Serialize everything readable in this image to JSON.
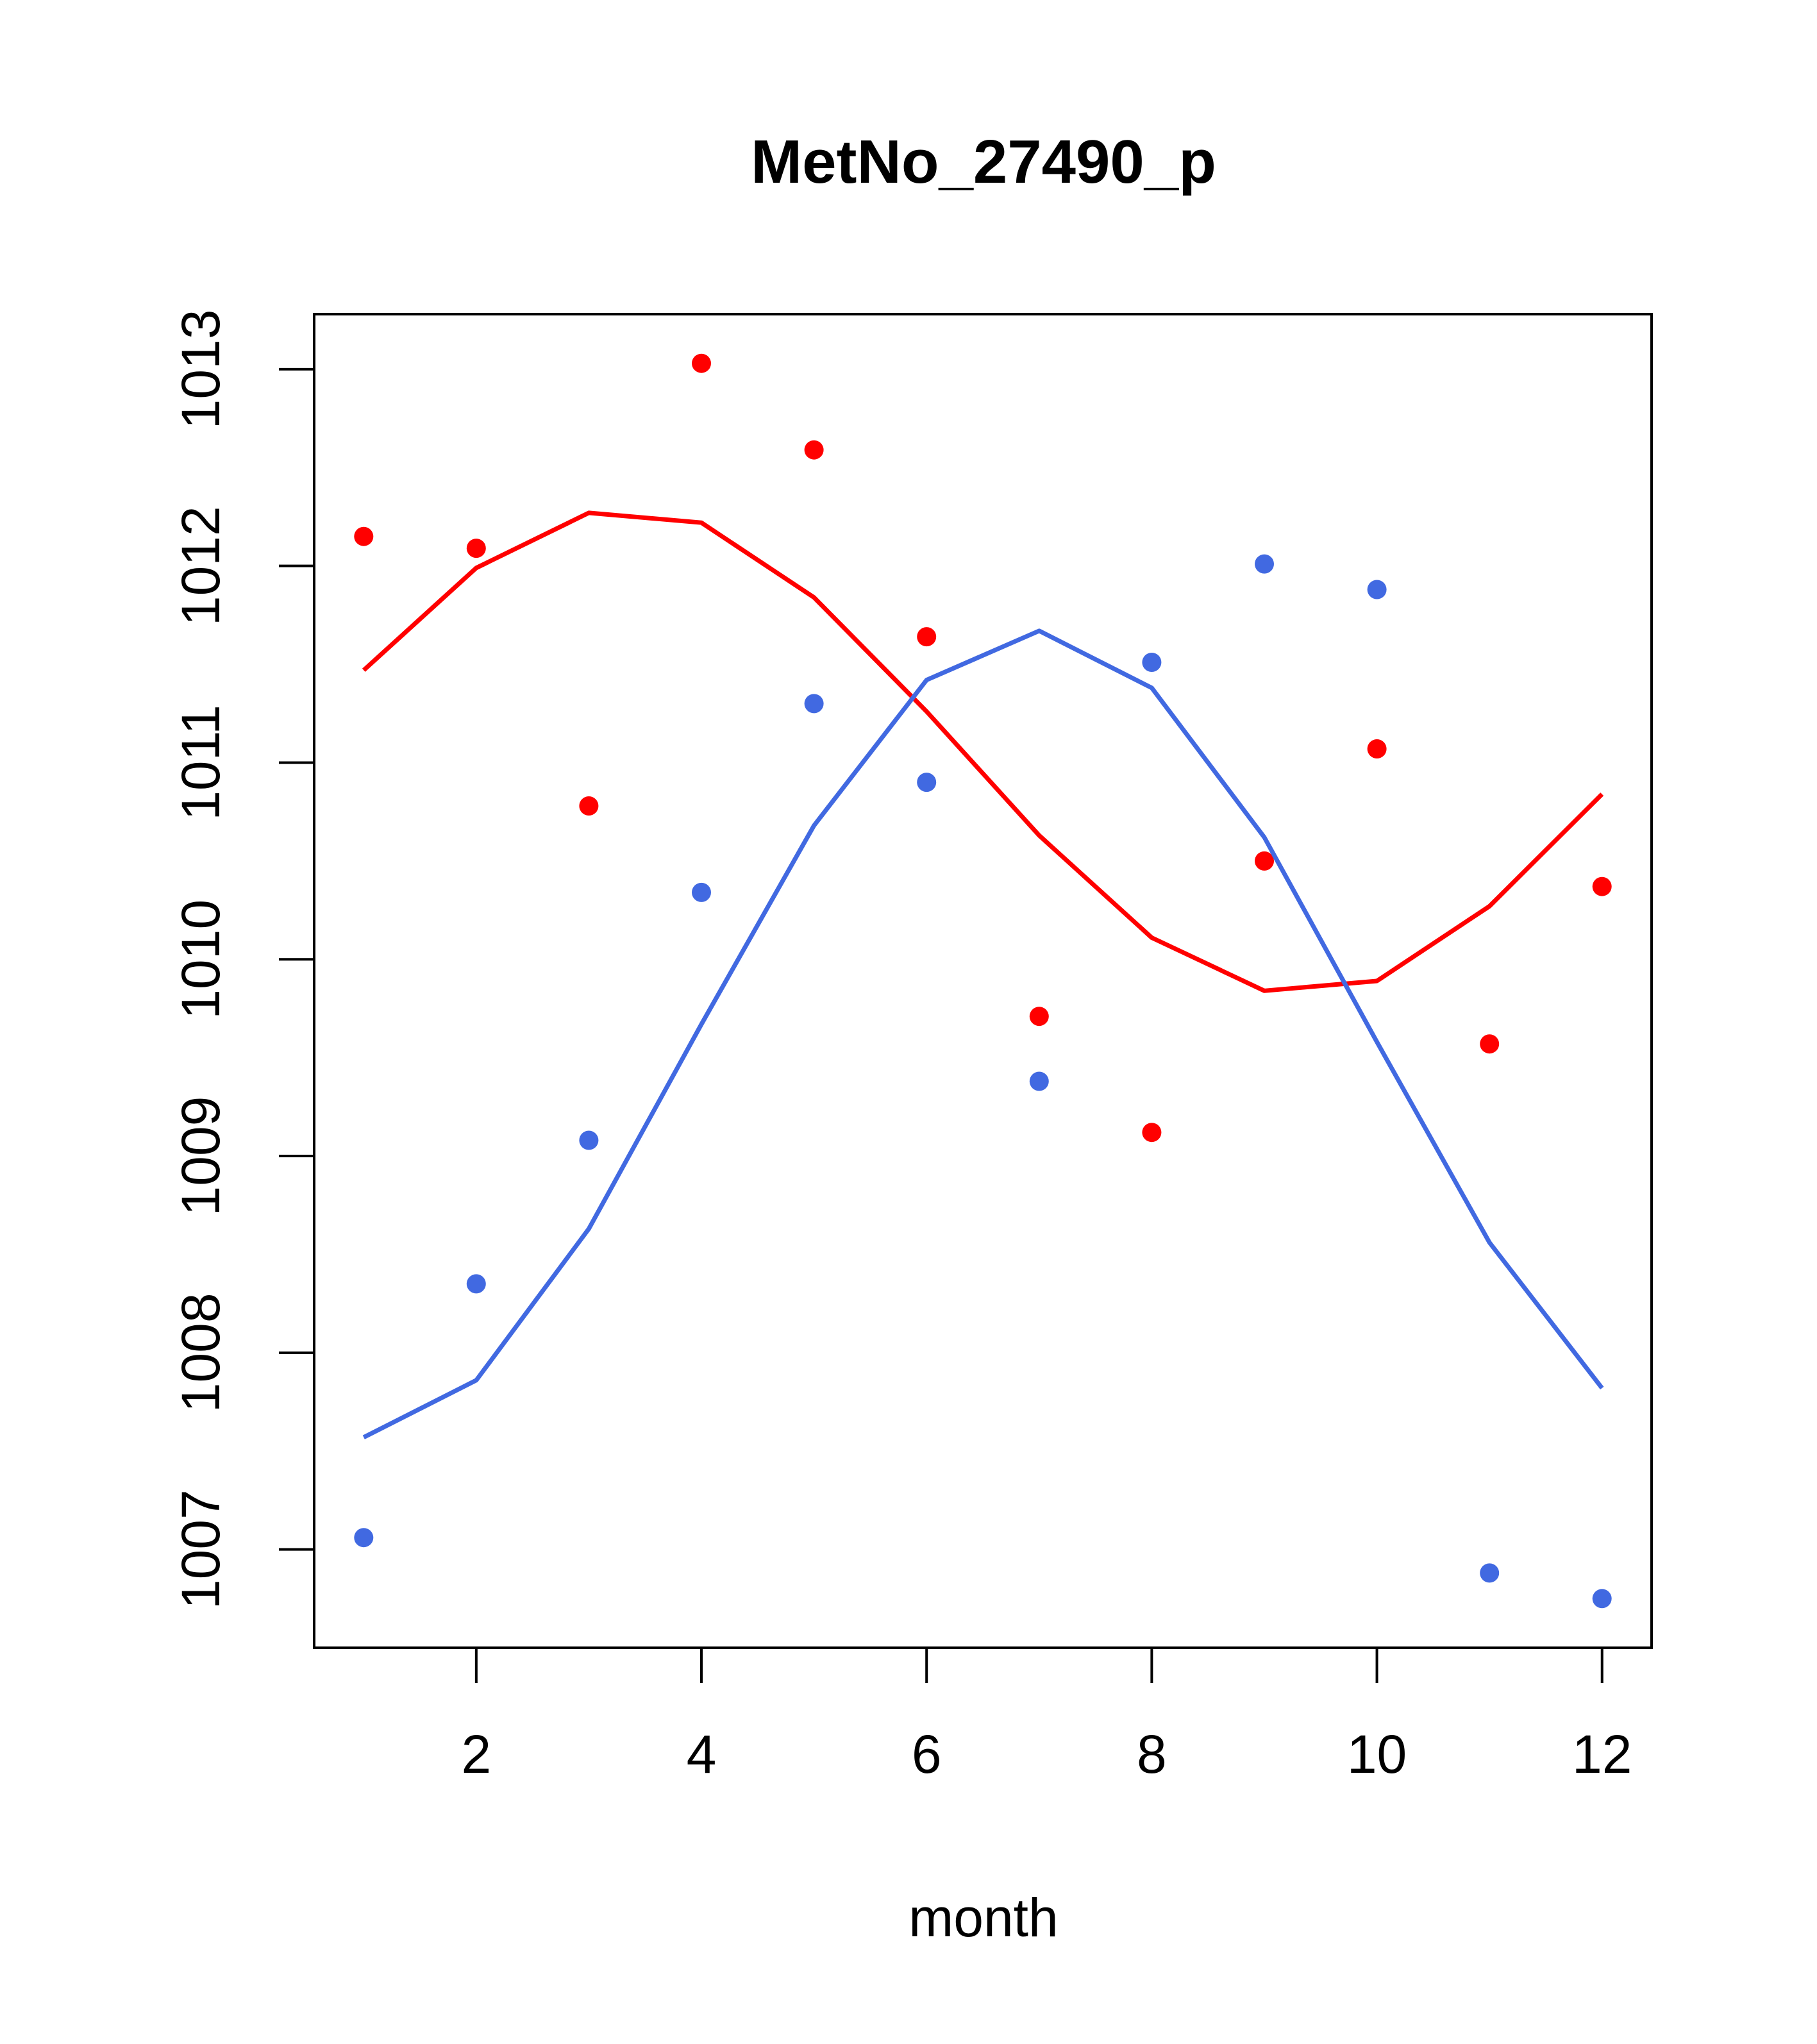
{
  "chart_data": {
    "type": "scatter",
    "title": "MetNo_27490_p",
    "xlabel": "month",
    "ylabel": "",
    "xlim": [
      0.56,
      12.44
    ],
    "ylim": [
      1006.5,
      1013.28
    ],
    "x_ticks": [
      2,
      4,
      6,
      8,
      10,
      12
    ],
    "y_ticks": [
      1007,
      1008,
      1009,
      1010,
      1011,
      1012,
      1013
    ],
    "grid": false,
    "legend": "none",
    "x": [
      1,
      2,
      3,
      4,
      5,
      6,
      7,
      8,
      9,
      10,
      11,
      12
    ],
    "series": [
      {
        "name": "red points",
        "kind": "points",
        "color": "#ff0000",
        "values": [
          1012.15,
          1012.09,
          1010.78,
          1013.03,
          1012.59,
          1011.64,
          1009.71,
          1009.12,
          1010.5,
          1011.07,
          1009.57,
          1010.37
        ]
      },
      {
        "name": "red fit",
        "kind": "line",
        "color": "#ff0000",
        "values": [
          1011.47,
          1011.99,
          1012.27,
          1012.22,
          1011.84,
          1011.26,
          1010.63,
          1010.11,
          1009.84,
          1009.89,
          1010.27,
          1010.84
        ]
      },
      {
        "name": "blue points",
        "kind": "points",
        "color": "#4169e1",
        "values": [
          1007.06,
          1008.35,
          1009.08,
          1010.34,
          1011.3,
          1010.9,
          1009.38,
          1011.51,
          1012.01,
          1011.88,
          1006.88,
          1006.75
        ]
      },
      {
        "name": "blue fit",
        "kind": "line",
        "color": "#4169e1",
        "values": [
          1007.57,
          1007.86,
          1008.63,
          1009.67,
          1010.68,
          1011.42,
          1011.67,
          1011.38,
          1010.62,
          1009.58,
          1008.56,
          1007.82
        ]
      }
    ]
  }
}
